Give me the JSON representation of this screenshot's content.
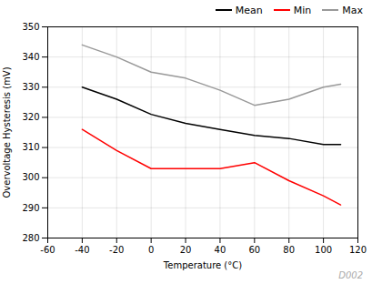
{
  "chart_data": {
    "type": "line",
    "x_label": "Temperature (°C)",
    "y_label": "Overvoltage Hysteresis (mV)",
    "x": [
      -40,
      -20,
      0,
      20,
      40,
      60,
      80,
      100,
      110
    ],
    "series": [
      {
        "name": "Mean",
        "color": "#000000",
        "values": [
          330,
          326,
          321,
          318,
          316,
          314,
          313,
          311,
          311
        ]
      },
      {
        "name": "Min",
        "color": "#ff0000",
        "values": [
          316,
          309,
          303,
          303,
          303,
          305,
          299,
          294,
          291
        ]
      },
      {
        "name": "Max",
        "color": "#999999",
        "values": [
          344,
          340,
          335,
          333,
          329,
          324,
          326,
          330,
          331
        ]
      }
    ],
    "xlim": [
      -60,
      120
    ],
    "ylim": [
      280,
      350
    ],
    "xticks": [
      -60,
      -40,
      -20,
      0,
      20,
      40,
      60,
      80,
      100,
      120
    ],
    "yticks": [
      280,
      290,
      300,
      310,
      320,
      330,
      340,
      350
    ],
    "grid": true,
    "legend": "upper right",
    "annotations": [
      "D002"
    ]
  }
}
